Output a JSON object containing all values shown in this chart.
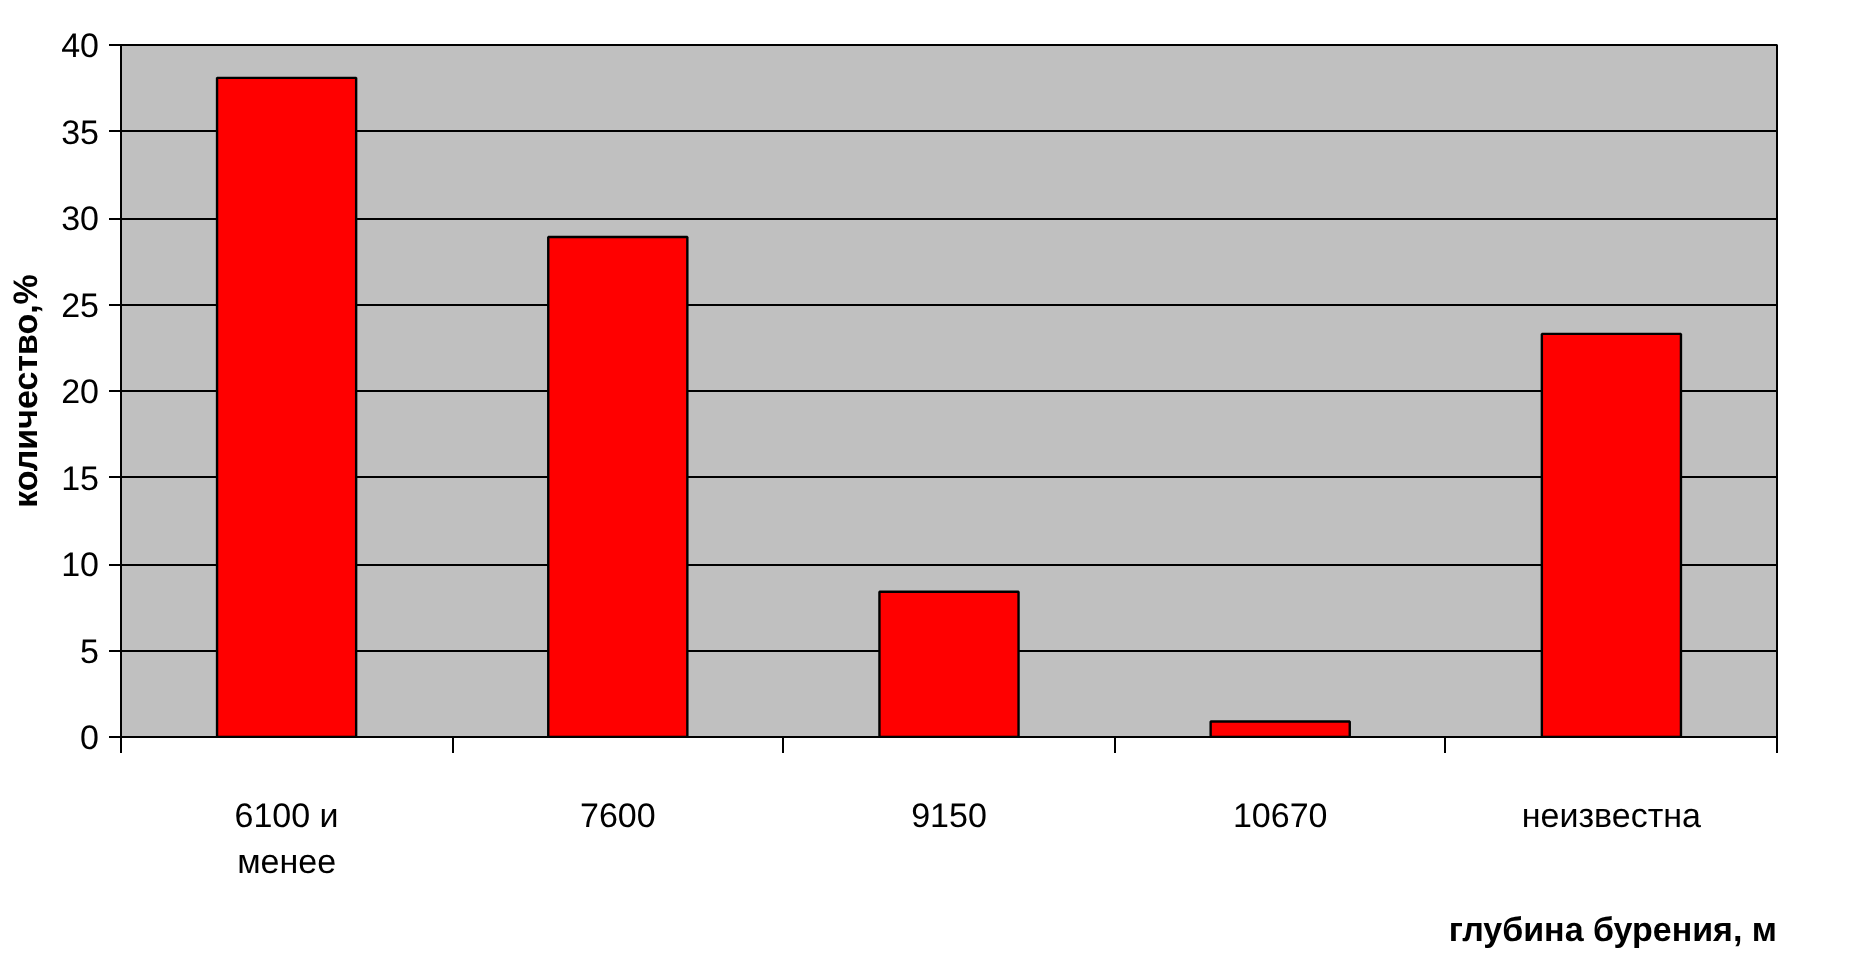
{
  "chart_data": {
    "type": "bar",
    "xlabel": "глубина бурения, м",
    "ylabel": "количество,%",
    "categories": [
      "6100 и\nменее",
      "7600",
      "9150",
      "10670",
      "неизвестна"
    ],
    "values": [
      38.1,
      28.9,
      8.4,
      0.9,
      23.3
    ],
    "color": "#ff0000",
    "ylim": [
      0,
      40
    ],
    "yticks": [
      0,
      5,
      10,
      15,
      20,
      25,
      30,
      35,
      40
    ],
    "grid": "y"
  }
}
